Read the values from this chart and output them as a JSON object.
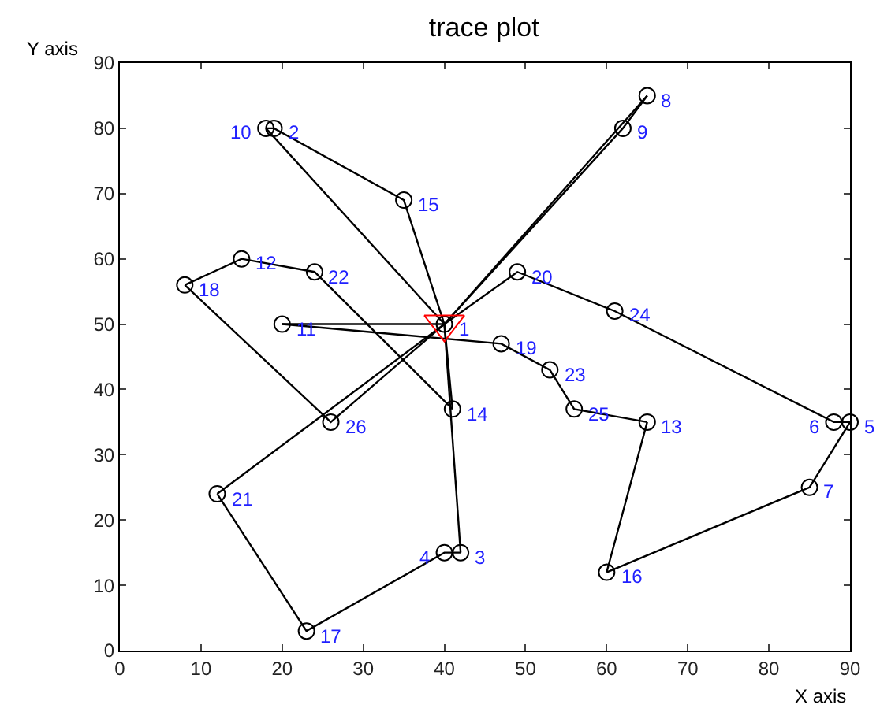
{
  "chart_data": {
    "type": "line",
    "title": "trace plot",
    "xlabel": "X axis",
    "ylabel": "Y axis",
    "xlim": [
      0,
      90
    ],
    "xticks": [
      0,
      10,
      20,
      30,
      40,
      50,
      60,
      70,
      80,
      90
    ],
    "ylim": [
      0,
      90
    ],
    "yticks": [
      0,
      10,
      20,
      30,
      40,
      50,
      60,
      70,
      80,
      90
    ],
    "marker": "none",
    "series": [
      {
        "color": "#000000",
        "x": [
          40,
          35,
          19,
          18
        ],
        "values": [
          50,
          69,
          80,
          80
        ]
      },
      {
        "color": "#000000",
        "x": [
          18,
          40
        ],
        "values": [
          80,
          50
        ]
      },
      {
        "color": "#000000",
        "x": [
          40,
          65
        ],
        "values": [
          50,
          85
        ]
      },
      {
        "color": "#000000",
        "x": [
          65,
          62,
          40
        ],
        "values": [
          85,
          80,
          50
        ]
      },
      {
        "color": "#000000",
        "x": [
          40,
          20
        ],
        "values": [
          50,
          50
        ]
      },
      {
        "color": "#000000",
        "x": [
          20,
          47,
          53,
          56,
          65
        ],
        "values": [
          50,
          47,
          43,
          37,
          35
        ]
      },
      {
        "color": "#000000",
        "x": [
          65,
          60
        ],
        "values": [
          35,
          12
        ]
      },
      {
        "color": "#000000",
        "x": [
          60,
          85,
          90
        ],
        "values": [
          12,
          25,
          35
        ]
      },
      {
        "color": "#000000",
        "x": [
          90,
          88,
          61,
          49,
          40
        ],
        "values": [
          35,
          35,
          52,
          58,
          50
        ]
      },
      {
        "color": "#000000",
        "x": [
          40,
          26,
          8
        ],
        "values": [
          50,
          35,
          56
        ]
      },
      {
        "color": "#000000",
        "x": [
          8,
          15,
          24,
          41
        ],
        "values": [
          56,
          60,
          58,
          37
        ]
      },
      {
        "color": "#000000",
        "x": [
          41,
          40
        ],
        "values": [
          37,
          50
        ]
      },
      {
        "color": "#000000",
        "x": [
          40,
          42
        ],
        "values": [
          50,
          15
        ]
      },
      {
        "color": "#000000",
        "x": [
          42,
          40,
          23,
          12
        ],
        "values": [
          15,
          15,
          3,
          24
        ]
      },
      {
        "color": "#000000",
        "x": [
          12,
          40
        ],
        "values": [
          24,
          50
        ]
      },
      {
        "type": "scatter",
        "color": "#000000",
        "marker": "circle",
        "x": [
          40,
          19,
          42,
          40,
          90,
          88,
          85,
          65,
          62,
          18,
          20,
          15,
          65,
          41,
          35,
          60,
          23,
          8,
          47,
          49,
          12,
          24,
          53,
          61,
          56,
          26
        ],
        "values": [
          50,
          80,
          15,
          15,
          35,
          35,
          25,
          85,
          80,
          80,
          50,
          60,
          35,
          37,
          69,
          12,
          3,
          56,
          47,
          58,
          24,
          58,
          43,
          52,
          37,
          35
        ]
      },
      {
        "type": "scatter",
        "color": "#ff0000",
        "marker": "triangle",
        "x": [
          40
        ],
        "values": [
          50
        ]
      }
    ],
    "annotations": [
      {
        "text": "1",
        "x": 40,
        "y": 50
      },
      {
        "text": "2",
        "x": 19,
        "y": 80
      },
      {
        "text": "3",
        "x": 42,
        "y": 15
      },
      {
        "text": "4",
        "x": 40,
        "y": 15
      },
      {
        "text": "5",
        "x": 90,
        "y": 35
      },
      {
        "text": "6",
        "x": 88,
        "y": 35
      },
      {
        "text": "7",
        "x": 85,
        "y": 25
      },
      {
        "text": "8",
        "x": 65,
        "y": 85
      },
      {
        "text": "9",
        "x": 62,
        "y": 80
      },
      {
        "text": "10",
        "x": 18,
        "y": 80
      },
      {
        "text": "11",
        "x": 20,
        "y": 50
      },
      {
        "text": "12",
        "x": 15,
        "y": 60
      },
      {
        "text": "13",
        "x": 65,
        "y": 35
      },
      {
        "text": "14",
        "x": 41,
        "y": 37
      },
      {
        "text": "15",
        "x": 35,
        "y": 69
      },
      {
        "text": "16",
        "x": 60,
        "y": 12
      },
      {
        "text": "17",
        "x": 23,
        "y": 3
      },
      {
        "text": "18",
        "x": 8,
        "y": 56
      },
      {
        "text": "19",
        "x": 47,
        "y": 47
      },
      {
        "text": "20",
        "x": 49,
        "y": 58
      },
      {
        "text": "21",
        "x": 12,
        "y": 24
      },
      {
        "text": "22",
        "x": 24,
        "y": 58
      },
      {
        "text": "23",
        "x": 53,
        "y": 43
      },
      {
        "text": "24",
        "x": 61,
        "y": 52
      },
      {
        "text": "25",
        "x": 56,
        "y": 37
      },
      {
        "text": "26",
        "x": 26,
        "y": 35
      }
    ]
  }
}
